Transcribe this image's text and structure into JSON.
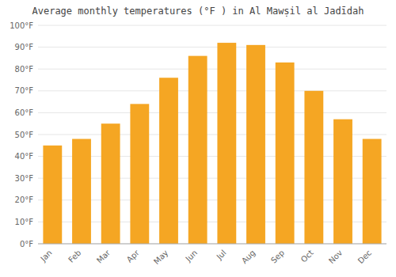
{
  "chart_data": {
    "type": "bar",
    "title": "Average monthly temperatures (°F ) in Al Mawṣil al Jadīdah",
    "categories": [
      "Jan",
      "Feb",
      "Mar",
      "Apr",
      "May",
      "Jun",
      "Jul",
      "Aug",
      "Sep",
      "Oct",
      "Nov",
      "Dec"
    ],
    "values": [
      45,
      48,
      55,
      64,
      76,
      86,
      92,
      91,
      83,
      70,
      57,
      48
    ],
    "color": "#F5A623",
    "ylim": [
      0,
      100
    ],
    "yticks": [
      {
        "value": 0,
        "label": "0°F"
      },
      {
        "value": 10,
        "label": "10°F"
      },
      {
        "value": 20,
        "label": "20°F"
      },
      {
        "value": 30,
        "label": "30°F"
      },
      {
        "value": 40,
        "label": "40°F"
      },
      {
        "value": 50,
        "label": "50°F"
      },
      {
        "value": 60,
        "label": "60°F"
      },
      {
        "value": 70,
        "label": "70°F"
      },
      {
        "value": 80,
        "label": "80°F"
      },
      {
        "value": 90,
        "label": "90°F"
      },
      {
        "value": 100,
        "label": "100°F"
      }
    ],
    "grid": true
  }
}
